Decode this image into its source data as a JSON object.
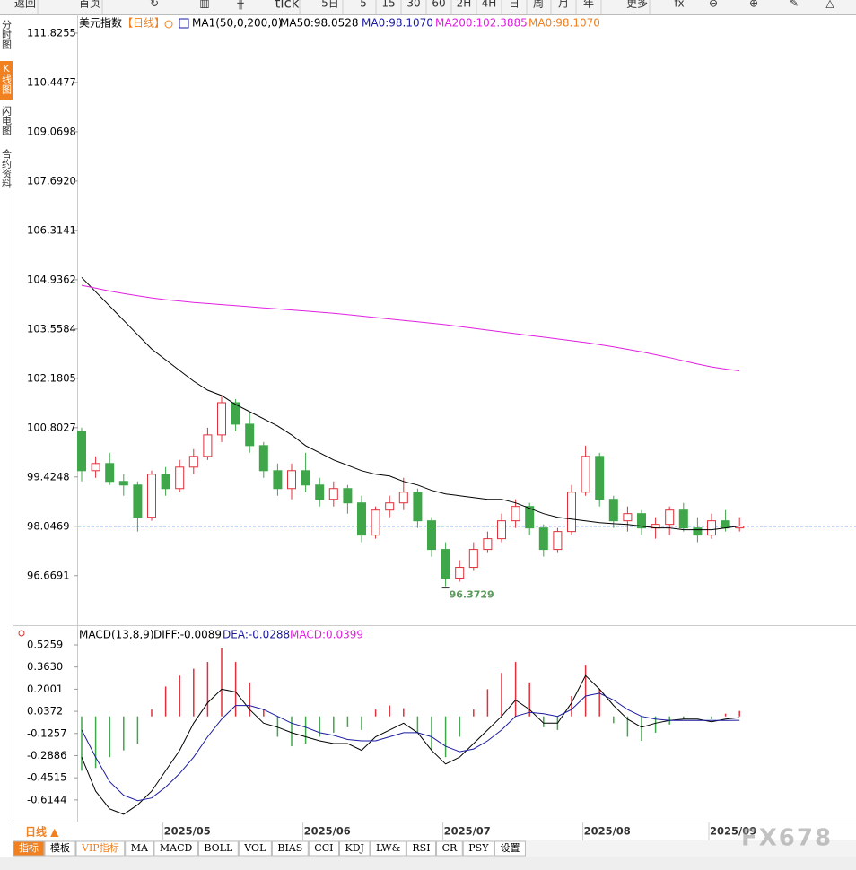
{
  "toolbar": [
    "返回",
    "首页",
    "tick",
    "5日",
    "5",
    "15",
    "30",
    "60",
    "2H",
    "4H",
    "日",
    "周",
    "月",
    "年",
    "更多"
  ],
  "side_tabs": [
    "分时图",
    "K线图",
    "闪电图",
    "合约资料"
  ],
  "chart_data": [
    {
      "type": "candlestick",
      "title": "美元指数",
      "period": "【日线】",
      "indicator": "MA1(50,0,200,0)",
      "legend": [
        {
          "text": "MA50:98.0528",
          "color": "#000000"
        },
        {
          "text": "MA0:98.1070",
          "color": "#1a1aa0"
        },
        {
          "text": "MA200:102.3885",
          "color": "#e020e0"
        },
        {
          "text": "MA0:98.1070",
          "color": "#f08020"
        }
      ],
      "x": [
        null,
        null,
        null,
        null,
        null,
        null,
        "2025/05",
        null,
        null,
        null,
        null,
        null,
        null,
        null,
        null,
        null,
        "2025/06",
        null,
        null,
        null,
        null,
        null,
        null,
        null,
        null,
        null,
        "2025/07",
        null,
        null,
        null,
        null,
        null,
        null,
        null,
        null,
        null,
        "2025/08",
        null,
        null,
        null,
        null,
        null,
        null,
        null,
        null,
        "2025/09",
        null,
        null
      ],
      "ohlc": [
        [
          100.7,
          100.8,
          99.3,
          99.6
        ],
        [
          99.6,
          100.0,
          99.4,
          99.8
        ],
        [
          99.8,
          100.1,
          99.2,
          99.3
        ],
        [
          99.3,
          99.5,
          98.9,
          99.2
        ],
        [
          99.2,
          99.3,
          97.9,
          98.3
        ],
        [
          98.3,
          99.6,
          98.2,
          99.5
        ],
        [
          99.5,
          99.7,
          98.9,
          99.1
        ],
        [
          99.1,
          99.9,
          99.0,
          99.7
        ],
        [
          99.7,
          100.2,
          99.5,
          100.0
        ],
        [
          100.0,
          100.8,
          99.9,
          100.6
        ],
        [
          100.6,
          101.7,
          100.4,
          101.5
        ],
        [
          101.5,
          101.6,
          100.7,
          100.9
        ],
        [
          100.9,
          101.2,
          100.1,
          100.3
        ],
        [
          100.3,
          100.4,
          99.4,
          99.6
        ],
        [
          99.6,
          99.8,
          98.9,
          99.1
        ],
        [
          99.1,
          99.8,
          98.8,
          99.6
        ],
        [
          99.6,
          100.1,
          99.0,
          99.2
        ],
        [
          99.2,
          99.4,
          98.6,
          98.8
        ],
        [
          98.8,
          99.3,
          98.6,
          99.1
        ],
        [
          99.1,
          99.2,
          98.4,
          98.7
        ],
        [
          98.7,
          98.9,
          97.6,
          97.8
        ],
        [
          97.8,
          98.6,
          97.7,
          98.5
        ],
        [
          98.5,
          98.9,
          98.3,
          98.7
        ],
        [
          98.7,
          99.4,
          98.5,
          99.0
        ],
        [
          99.0,
          99.1,
          98.0,
          98.2
        ],
        [
          98.2,
          98.3,
          97.2,
          97.4
        ],
        [
          97.4,
          97.6,
          96.3729,
          96.6
        ],
        [
          96.6,
          97.1,
          96.5,
          96.9
        ],
        [
          96.9,
          97.6,
          96.8,
          97.4
        ],
        [
          97.4,
          97.9,
          97.3,
          97.7
        ],
        [
          97.7,
          98.4,
          97.6,
          98.2
        ],
        [
          98.2,
          98.8,
          98.0,
          98.6
        ],
        [
          98.6,
          98.7,
          97.8,
          98.0
        ],
        [
          98.0,
          98.1,
          97.2,
          97.4
        ],
        [
          97.4,
          98.0,
          97.3,
          97.9
        ],
        [
          97.9,
          99.2,
          97.8,
          99.0
        ],
        [
          99.0,
          100.3,
          98.9,
          100.0
        ],
        [
          100.0,
          100.1,
          98.6,
          98.8
        ],
        [
          98.8,
          98.9,
          98.0,
          98.2
        ],
        [
          98.2,
          98.6,
          97.9,
          98.4
        ],
        [
          98.4,
          98.5,
          97.8,
          98.0
        ],
        [
          98.0,
          98.3,
          97.7,
          98.1
        ],
        [
          98.1,
          98.6,
          97.8,
          98.5
        ],
        [
          98.5,
          98.7,
          97.9,
          98.0
        ],
        [
          98.0,
          98.3,
          97.6,
          97.8
        ],
        [
          97.8,
          98.4,
          97.7,
          98.2
        ],
        [
          98.2,
          98.5,
          97.9,
          98.0
        ],
        [
          98.0,
          98.3,
          97.9,
          98.05
        ]
      ],
      "up_color": "#e0303a",
      "down_color": "#3fa64a",
      "series": [
        {
          "name": "MA50",
          "color": "#000000",
          "values": [
            105.0,
            104.6,
            104.2,
            103.8,
            103.4,
            103.0,
            102.7,
            102.4,
            102.1,
            101.85,
            101.7,
            101.45,
            101.25,
            101.05,
            100.85,
            100.6,
            100.3,
            100.1,
            99.9,
            99.75,
            99.6,
            99.5,
            99.45,
            99.3,
            99.2,
            99.05,
            98.95,
            98.9,
            98.85,
            98.8,
            98.8,
            98.7,
            98.55,
            98.4,
            98.3,
            98.25,
            98.2,
            98.15,
            98.12,
            98.1,
            98.05,
            98.0,
            98.0,
            97.95,
            97.95,
            97.95,
            98.0,
            98.0528
          ]
        },
        {
          "name": "MA200",
          "color": "#e020e0",
          "values": [
            104.78,
            104.7,
            104.62,
            104.55,
            104.49,
            104.43,
            104.38,
            104.34,
            104.3,
            104.27,
            104.24,
            104.21,
            104.18,
            104.15,
            104.12,
            104.09,
            104.06,
            104.03,
            104.0,
            103.96,
            103.92,
            103.88,
            103.84,
            103.8,
            103.76,
            103.72,
            103.68,
            103.63,
            103.58,
            103.53,
            103.48,
            103.43,
            103.38,
            103.33,
            103.28,
            103.23,
            103.18,
            103.12,
            103.06,
            102.99,
            102.92,
            102.84,
            102.76,
            102.67,
            102.58,
            102.5,
            102.44,
            102.3885
          ]
        }
      ],
      "min_label": 96.3729,
      "last_price": 98.0469,
      "last_price_color": "#2a60d0",
      "ylim": [
        95.46,
        112.25
      ],
      "yticks": [
        111.8255,
        110.4477,
        109.0698,
        {
          "value": 107.692,
          "label": "107.6920"
        },
        106.3141,
        104.9362,
        103.5584,
        102.1805,
        100.8027,
        99.4248,
        98.0469,
        96.6691
      ]
    },
    {
      "type": "macd",
      "title": "MACD(13,8,9)",
      "legend": [
        {
          "text": "DIFF:-0.0089",
          "color": "#000000"
        },
        {
          "text": "DEA:-0.0288",
          "color": "#1a1aa0"
        },
        {
          "text": "MACD:0.0399",
          "color": "#e020e0"
        }
      ],
      "up_color": "#e0303a",
      "down_color": "#3fa64a",
      "histogram": [
        -0.4,
        -0.38,
        -0.3,
        -0.25,
        -0.2,
        0.05,
        0.22,
        0.3,
        0.35,
        0.4,
        0.5,
        0.4,
        0.25,
        0.05,
        -0.15,
        -0.22,
        -0.2,
        -0.15,
        -0.12,
        -0.08,
        -0.1,
        0.05,
        0.08,
        0.06,
        -0.12,
        -0.25,
        -0.3,
        -0.15,
        0.05,
        0.2,
        0.32,
        0.4,
        0.25,
        -0.08,
        -0.1,
        0.15,
        0.38,
        0.2,
        -0.05,
        -0.15,
        -0.18,
        -0.12,
        -0.06,
        -0.02,
        0.0,
        -0.02,
        0.02,
        0.0399
      ],
      "series": [
        {
          "name": "DIFF",
          "color": "#000000",
          "values": [
            -0.3,
            -0.55,
            -0.68,
            -0.72,
            -0.65,
            -0.55,
            -0.4,
            -0.25,
            -0.05,
            0.1,
            0.2,
            0.18,
            0.05,
            -0.05,
            -0.08,
            -0.12,
            -0.15,
            -0.18,
            -0.2,
            -0.2,
            -0.25,
            -0.15,
            -0.1,
            -0.05,
            -0.12,
            -0.25,
            -0.35,
            -0.3,
            -0.2,
            -0.1,
            0.0,
            0.12,
            0.05,
            -0.05,
            -0.05,
            0.1,
            0.3,
            0.2,
            0.08,
            -0.02,
            -0.08,
            -0.05,
            -0.03,
            -0.02,
            -0.02,
            -0.04,
            -0.02,
            -0.0089
          ]
        },
        {
          "name": "DEA",
          "color": "#1a1aa0",
          "values": [
            -0.1,
            -0.3,
            -0.48,
            -0.58,
            -0.62,
            -0.6,
            -0.52,
            -0.42,
            -0.3,
            -0.15,
            -0.02,
            0.08,
            0.08,
            0.05,
            0.0,
            -0.05,
            -0.08,
            -0.12,
            -0.14,
            -0.17,
            -0.18,
            -0.18,
            -0.15,
            -0.12,
            -0.12,
            -0.15,
            -0.22,
            -0.26,
            -0.24,
            -0.18,
            -0.1,
            0.0,
            0.03,
            0.02,
            0.0,
            0.05,
            0.15,
            0.17,
            0.12,
            0.05,
            0.0,
            -0.02,
            -0.03,
            -0.03,
            -0.03,
            -0.03,
            -0.03,
            -0.0288
          ]
        }
      ],
      "ylim": [
        -0.767,
        0.638
      ],
      "yticks": [
        0.5259,
        {
          "value": 0.363,
          "label": "0.3630"
        },
        0.2001,
        0.0372,
        -0.1257,
        -0.2886,
        -0.4515,
        -0.6144
      ]
    }
  ],
  "period_button": "日线 ▲",
  "indicator_tabs": [
    "指标",
    "模板",
    "VIP指标",
    "MA",
    "MACD",
    "BOLL",
    "VOL",
    "BIAS",
    "CCI",
    "KDJ",
    "LW&",
    "RSI",
    "CR",
    "PSY",
    "设置"
  ],
  "watermark": "FX678"
}
